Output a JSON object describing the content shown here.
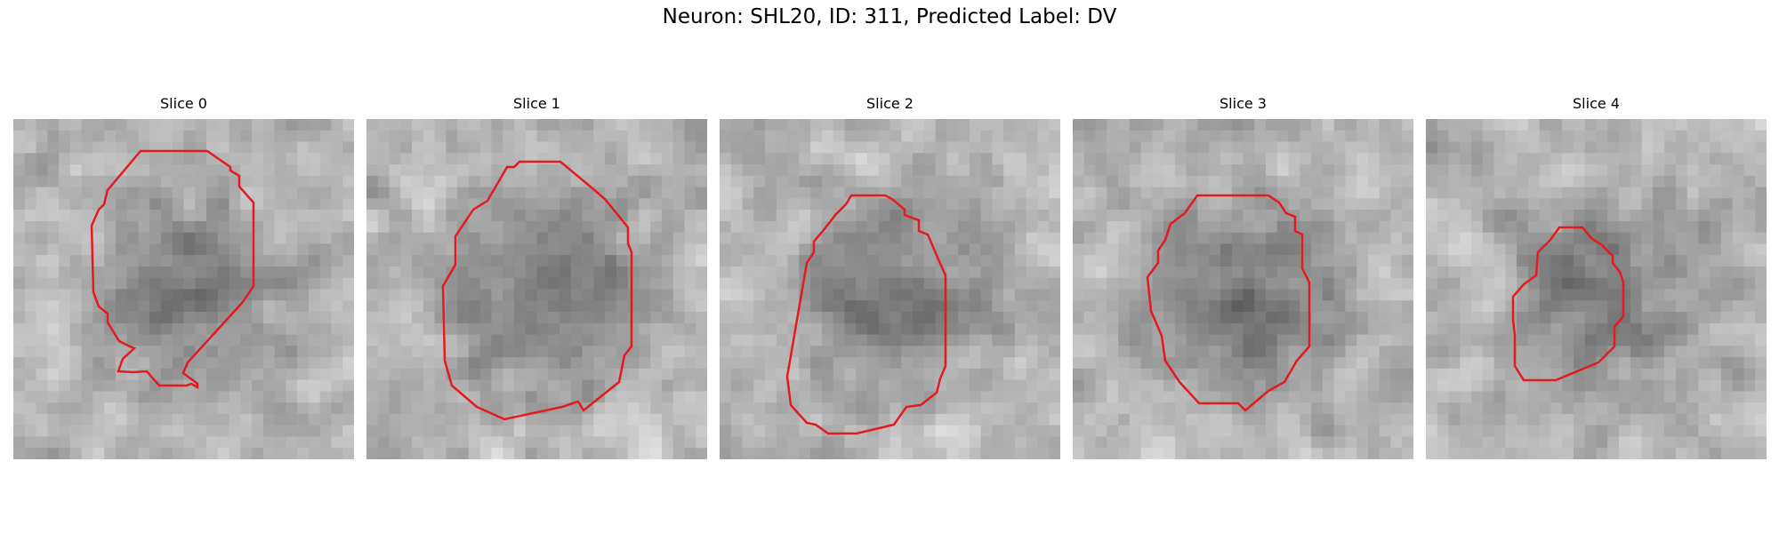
{
  "figure": {
    "title": "Neuron: SHL20, ID: 311, Predicted Label: DV"
  },
  "panels": [
    {
      "title": "Slice 0",
      "contour_color": "#e41a1c"
    },
    {
      "title": "Slice 1",
      "contour_color": "#e41a1c"
    },
    {
      "title": "Slice 2",
      "contour_color": "#e41a1c"
    },
    {
      "title": "Slice 3",
      "contour_color": "#e41a1c"
    },
    {
      "title": "Slice 4",
      "contour_color": "#e41a1c"
    }
  ],
  "colormap": "gray",
  "grid_size": 30
}
